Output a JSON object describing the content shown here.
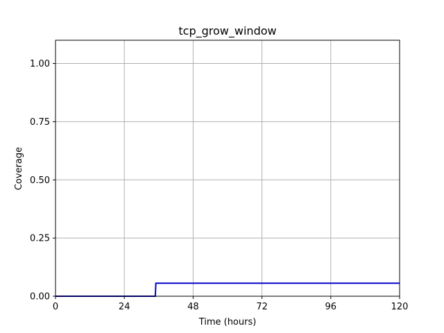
{
  "chart_data": {
    "type": "line",
    "title": "tcp_grow_window",
    "xlabel": "Time (hours)",
    "ylabel": "Coverage",
    "xlim": [
      0,
      120
    ],
    "ylim": [
      0,
      1.1
    ],
    "xticks": [
      0,
      24,
      48,
      72,
      96,
      120
    ],
    "yticks": [
      0.0,
      0.25,
      0.5,
      0.75,
      1.0
    ],
    "xtick_labels": [
      "0",
      "24",
      "48",
      "72",
      "96",
      "120"
    ],
    "ytick_labels": [
      "0.00",
      "0.25",
      "0.50",
      "0.75",
      "1.00"
    ],
    "grid": true,
    "series": [
      {
        "color": "#0000cc",
        "x": [
          0,
          34.8,
          35.0,
          120
        ],
        "y": [
          0,
          0,
          0.056,
          0.056
        ]
      }
    ]
  }
}
